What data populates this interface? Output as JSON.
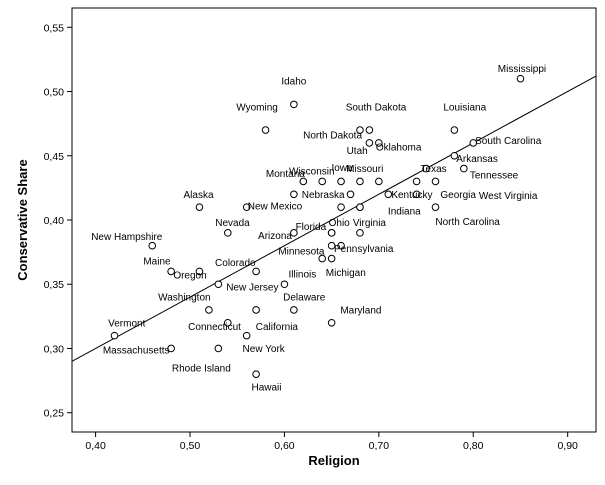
{
  "chart_data": {
    "type": "scatter",
    "title": "",
    "xlabel": "Religion",
    "ylabel": "Conservative Share",
    "xlim": [
      0.375,
      0.93
    ],
    "ylim": [
      0.235,
      0.565
    ],
    "xticks": [
      "0,40",
      "0,50",
      "0,60",
      "0,70",
      "0,80",
      "0,90"
    ],
    "xtick_values": [
      0.4,
      0.5,
      0.6,
      0.7,
      0.8,
      0.9
    ],
    "yticks": [
      "0,25",
      "0,30",
      "0,35",
      "0,40",
      "0,45",
      "0,50",
      "0,55"
    ],
    "ytick_values": [
      0.25,
      0.3,
      0.35,
      0.4,
      0.45,
      0.5,
      0.55
    ],
    "fit_line": {
      "x": [
        0.375,
        0.93
      ],
      "y": [
        0.29,
        0.512
      ]
    },
    "points": [
      {
        "label": "Mississippi",
        "x": 0.85,
        "y": 0.51,
        "lx": 0.826,
        "ly": 0.518,
        "anchor": "start"
      },
      {
        "label": "Idaho",
        "x": 0.61,
        "y": 0.49,
        "lx": 0.61,
        "ly": 0.508,
        "anchor": "middle"
      },
      {
        "label": "Wyoming",
        "x": 0.58,
        "y": 0.47,
        "lx": 0.571,
        "ly": 0.488,
        "anchor": "middle"
      },
      {
        "label": "South Dakota",
        "x": 0.69,
        "y": 0.47,
        "lx": 0.697,
        "ly": 0.488,
        "anchor": "middle"
      },
      {
        "label": "North Dakota",
        "x": 0.68,
        "y": 0.47,
        "lx": 0.651,
        "ly": 0.466,
        "anchor": "middle"
      },
      {
        "label": "Louisiana",
        "x": 0.78,
        "y": 0.47,
        "lx": 0.791,
        "ly": 0.488,
        "anchor": "middle"
      },
      {
        "label": "Utah",
        "x": 0.69,
        "y": 0.46,
        "lx": 0.677,
        "ly": 0.454,
        "anchor": "middle"
      },
      {
        "label": "Oklahoma",
        "x": 0.7,
        "y": 0.46,
        "lx": 0.721,
        "ly": 0.457,
        "anchor": "middle"
      },
      {
        "label": "South Carolina",
        "x": 0.8,
        "y": 0.46,
        "lx": 0.837,
        "ly": 0.462,
        "anchor": "middle"
      },
      {
        "label": "Arkansas",
        "x": 0.78,
        "y": 0.45,
        "lx": 0.804,
        "ly": 0.448,
        "anchor": "middle"
      },
      {
        "label": "Montana",
        "x": 0.62,
        "y": 0.43,
        "lx": 0.601,
        "ly": 0.436,
        "anchor": "middle"
      },
      {
        "label": "Wisconsin",
        "x": 0.64,
        "y": 0.43,
        "lx": 0.629,
        "ly": 0.438,
        "anchor": "middle"
      },
      {
        "label": "Iowa",
        "x": 0.66,
        "y": 0.43,
        "lx": 0.661,
        "ly": 0.441,
        "anchor": "middle"
      },
      {
        "label": "Missouri",
        "x": 0.68,
        "y": 0.43,
        "lx": 0.685,
        "ly": 0.44,
        "anchor": "middle"
      },
      {
        "label": "Texas",
        "x": 0.75,
        "y": 0.44,
        "lx": 0.758,
        "ly": 0.44,
        "anchor": "middle"
      },
      {
        "label": "Tennessee",
        "x": 0.79,
        "y": 0.44,
        "lx": 0.822,
        "ly": 0.435,
        "anchor": "middle"
      },
      {
        "label": "Georgia",
        "x": 0.76,
        "y": 0.43,
        "lx": 0.784,
        "ly": 0.42,
        "anchor": "middle"
      },
      {
        "label": "Alaska",
        "x": 0.51,
        "y": 0.41,
        "lx": 0.509,
        "ly": 0.42,
        "anchor": "middle"
      },
      {
        "label": "Nebraska",
        "x": 0.67,
        "y": 0.42,
        "lx": 0.641,
        "ly": 0.42,
        "anchor": "middle"
      },
      {
        "label": "Kentucky",
        "x": 0.71,
        "y": 0.42,
        "lx": 0.735,
        "ly": 0.42,
        "anchor": "middle"
      },
      {
        "label": "West Virginia",
        "x": 0.74,
        "y": 0.43,
        "lx": 0.837,
        "ly": 0.419,
        "anchor": "middle"
      },
      {
        "label": "New Mexico",
        "x": 0.56,
        "y": 0.41,
        "lx": 0.59,
        "ly": 0.411,
        "anchor": "middle"
      },
      {
        "label": "Indiana",
        "x": 0.68,
        "y": 0.41,
        "lx": 0.727,
        "ly": 0.407,
        "anchor": "middle"
      },
      {
        "label": "North Carolina",
        "x": 0.76,
        "y": 0.41,
        "lx": 0.794,
        "ly": 0.399,
        "anchor": "middle"
      },
      {
        "label": "Nevada",
        "x": 0.54,
        "y": 0.39,
        "lx": 0.545,
        "ly": 0.398,
        "anchor": "middle"
      },
      {
        "label": "Ohio",
        "x": 0.66,
        "y": 0.41,
        "lx": 0.658,
        "ly": 0.398,
        "anchor": "middle"
      },
      {
        "label": "Virginia",
        "x": 0.68,
        "y": 0.41,
        "lx": 0.69,
        "ly": 0.398,
        "anchor": "middle"
      },
      {
        "label": "Florida",
        "x": 0.65,
        "y": 0.39,
        "lx": 0.628,
        "ly": 0.395,
        "anchor": "middle"
      },
      {
        "label": "Arizona",
        "x": 0.61,
        "y": 0.39,
        "lx": 0.59,
        "ly": 0.388,
        "anchor": "middle"
      },
      {
        "label": "New Hampshire",
        "x": 0.46,
        "y": 0.38,
        "lx": 0.433,
        "ly": 0.387,
        "anchor": "middle"
      },
      {
        "label": "Minnesota",
        "x": 0.65,
        "y": 0.38,
        "lx": 0.618,
        "ly": 0.376,
        "anchor": "middle"
      },
      {
        "label": "Pennsylvania",
        "x": 0.66,
        "y": 0.38,
        "lx": 0.684,
        "ly": 0.378,
        "anchor": "middle"
      },
      {
        "label": "Maine",
        "x": 0.48,
        "y": 0.36,
        "lx": 0.465,
        "ly": 0.368,
        "anchor": "middle"
      },
      {
        "label": "Colorado",
        "x": 0.57,
        "y": 0.36,
        "lx": 0.548,
        "ly": 0.367,
        "anchor": "middle"
      },
      {
        "label": "Oregon",
        "x": 0.51,
        "y": 0.36,
        "lx": 0.5,
        "ly": 0.357,
        "anchor": "middle"
      },
      {
        "label": "Illinois",
        "x": 0.64,
        "y": 0.37,
        "lx": 0.619,
        "ly": 0.358,
        "anchor": "middle"
      },
      {
        "label": "Michigan",
        "x": 0.65,
        "y": 0.37,
        "lx": 0.665,
        "ly": 0.359,
        "anchor": "middle"
      },
      {
        "label": "New Jersey",
        "x": 0.53,
        "y": 0.35,
        "lx": 0.566,
        "ly": 0.348,
        "anchor": "middle"
      },
      {
        "label": "Washington",
        "x": 0.52,
        "y": 0.33,
        "lx": 0.494,
        "ly": 0.34,
        "anchor": "middle"
      },
      {
        "label": "Delaware",
        "x": 0.6,
        "y": 0.35,
        "lx": 0.621,
        "ly": 0.34,
        "anchor": "middle"
      },
      {
        "label": "Maryland",
        "x": 0.65,
        "y": 0.32,
        "lx": 0.681,
        "ly": 0.33,
        "anchor": "middle"
      },
      {
        "label": "Connecticut",
        "x": 0.57,
        "y": 0.33,
        "lx": 0.526,
        "ly": 0.317,
        "anchor": "middle"
      },
      {
        "label": "California",
        "x": 0.61,
        "y": 0.33,
        "lx": 0.592,
        "ly": 0.317,
        "anchor": "middle"
      },
      {
        "label": "Vermont",
        "x": 0.42,
        "y": 0.31,
        "lx": 0.433,
        "ly": 0.32,
        "anchor": "middle"
      },
      {
        "label": "New York",
        "x": 0.56,
        "y": 0.31,
        "lx": 0.578,
        "ly": 0.3,
        "anchor": "middle"
      },
      {
        "label": "Massachusetts",
        "x": 0.48,
        "y": 0.3,
        "lx": 0.443,
        "ly": 0.299,
        "anchor": "middle"
      },
      {
        "label": "Rhode Island",
        "x": 0.53,
        "y": 0.3,
        "lx": 0.512,
        "ly": 0.285,
        "anchor": "middle"
      },
      {
        "label": "Hawaii",
        "x": 0.57,
        "y": 0.28,
        "lx": 0.581,
        "ly": 0.27,
        "anchor": "middle"
      },
      {
        "label": "",
        "x": 0.54,
        "y": 0.32,
        "lx": 0,
        "ly": 0,
        "anchor": "middle"
      },
      {
        "label": "",
        "x": 0.65,
        "y": 0.39,
        "lx": 0,
        "ly": 0,
        "anchor": "middle"
      },
      {
        "label": "",
        "x": 0.68,
        "y": 0.39,
        "lx": 0,
        "ly": 0,
        "anchor": "middle"
      },
      {
        "label": "",
        "x": 0.61,
        "y": 0.42,
        "lx": 0,
        "ly": 0,
        "anchor": "middle"
      },
      {
        "label": "",
        "x": 0.7,
        "y": 0.43,
        "lx": 0,
        "ly": 0,
        "anchor": "middle"
      },
      {
        "label": "",
        "x": 0.74,
        "y": 0.42,
        "lx": 0,
        "ly": 0,
        "anchor": "middle"
      }
    ]
  }
}
